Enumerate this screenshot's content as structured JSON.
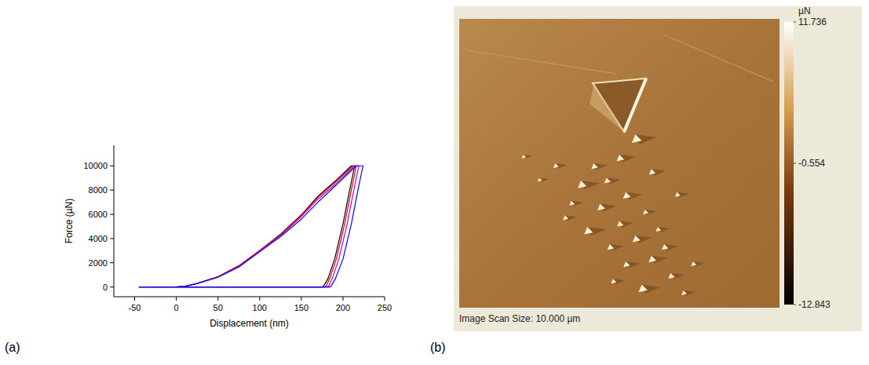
{
  "chart_data": [
    {
      "type": "line",
      "panel_label": "(a)",
      "x_label": "Displacement (nm)",
      "y_label": "Force (µN)",
      "xlim": [
        -75,
        250
      ],
      "ylim": [
        -800,
        11700
      ],
      "xticks": [
        -50,
        0,
        50,
        100,
        150,
        200,
        250
      ],
      "yticks": [
        0,
        2000,
        4000,
        6000,
        8000,
        10000
      ],
      "grid": false,
      "series": [
        {
          "color": "#000000",
          "x": [
            -45,
            0,
            10,
            25,
            50,
            75,
            100,
            125,
            150,
            170,
            190,
            210,
            214,
            208,
            200,
            190,
            182,
            177,
            175,
            100,
            0,
            -45
          ],
          "values": [
            0,
            0,
            50,
            300,
            850,
            1750,
            3000,
            4350,
            5950,
            7500,
            8700,
            10000,
            10000,
            8000,
            5200,
            2300,
            700,
            100,
            0,
            0,
            0,
            0
          ]
        },
        {
          "color": "#e00000",
          "x": [
            -45,
            0,
            10,
            25,
            50,
            75,
            100,
            125,
            150,
            170,
            190,
            212,
            216,
            210,
            202,
            192,
            184,
            180,
            178,
            100,
            0,
            -45
          ],
          "values": [
            0,
            0,
            50,
            300,
            850,
            1750,
            3000,
            4300,
            5900,
            7400,
            8600,
            10000,
            10000,
            8000,
            5200,
            2300,
            700,
            100,
            0,
            0,
            0,
            0
          ]
        },
        {
          "color": "#c000c0",
          "x": [
            -45,
            0,
            10,
            25,
            50,
            75,
            100,
            125,
            150,
            170,
            190,
            214,
            219,
            213,
            205,
            195,
            187,
            183,
            181,
            100,
            0,
            -45
          ],
          "values": [
            0,
            0,
            50,
            290,
            830,
            1700,
            2950,
            4250,
            5800,
            7250,
            8450,
            10000,
            10000,
            8000,
            5200,
            2300,
            700,
            100,
            0,
            0,
            0,
            0
          ]
        },
        {
          "color": "#0000ff",
          "x": [
            -45,
            0,
            10,
            25,
            50,
            75,
            100,
            125,
            150,
            170,
            190,
            216,
            224,
            218,
            210,
            200,
            191,
            186,
            184,
            100,
            0,
            -45
          ],
          "values": [
            0,
            0,
            50,
            280,
            800,
            1650,
            2900,
            4150,
            5600,
            7000,
            8300,
            10000,
            10000,
            8000,
            5200,
            2300,
            700,
            100,
            0,
            0,
            0,
            0
          ]
        }
      ]
    },
    {
      "type": "image",
      "panel_label": "(b)",
      "caption": "Image Scan Size: 10.000 µm",
      "colorbar": {
        "label": "µN",
        "range": [
          -12.843,
          11.736
        ],
        "ticks": [
          11.736,
          -0.554,
          -12.843
        ]
      }
    }
  ]
}
